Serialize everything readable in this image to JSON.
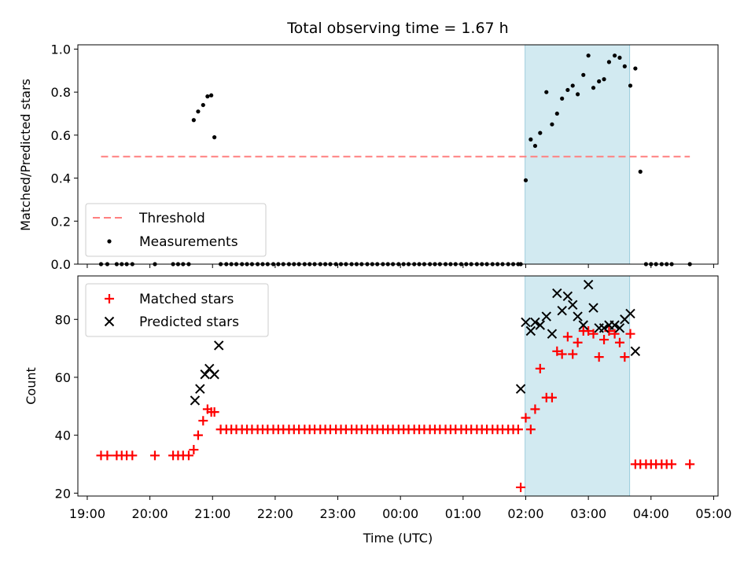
{
  "page": {
    "title": "Total observing time = 1.67 h"
  },
  "chart_data": [
    {
      "type": "scatter",
      "ylabel": "Matched/Predicted stars",
      "xlabel": "",
      "xlim_hours": [
        18.85,
        29.07
      ],
      "ylim": [
        0,
        1.02
      ],
      "xticks": [
        {
          "h": 19,
          "label": "19:00"
        },
        {
          "h": 20,
          "label": "20:00"
        },
        {
          "h": 21,
          "label": "21:00"
        },
        {
          "h": 22,
          "label": "22:00"
        },
        {
          "h": 23,
          "label": "23:00"
        },
        {
          "h": 24,
          "label": "00:00"
        },
        {
          "h": 25,
          "label": "01:00"
        },
        {
          "h": 26,
          "label": "02:00"
        },
        {
          "h": 27,
          "label": "03:00"
        },
        {
          "h": 28,
          "label": "04:00"
        },
        {
          "h": 29,
          "label": "05:00"
        }
      ],
      "yticks": [
        {
          "v": 0.0,
          "label": "0.0"
        },
        {
          "v": 0.2,
          "label": "0.2"
        },
        {
          "v": 0.4,
          "label": "0.4"
        },
        {
          "v": 0.6,
          "label": "0.6"
        },
        {
          "v": 0.8,
          "label": "0.8"
        },
        {
          "v": 1.0,
          "label": "1.0"
        }
      ],
      "shaded_span": [
        25.99,
        27.66
      ],
      "colors": {
        "threshold": "#ff7f7f",
        "measurements": "#000000",
        "span": "#add8e6"
      },
      "threshold": {
        "name": "Threshold",
        "value": 0.5,
        "x_range": [
          19.22,
          28.62
        ]
      },
      "measurements": {
        "name": "Measurements",
        "x": [
          19.22,
          19.32,
          19.47,
          19.55,
          19.63,
          19.72,
          20.08,
          20.37,
          20.45,
          20.53,
          20.62,
          20.7,
          20.77,
          20.85,
          20.92,
          20.98,
          21.03,
          21.13,
          21.22,
          21.3,
          21.38,
          21.47,
          21.55,
          21.63,
          21.72,
          21.8,
          21.88,
          21.97,
          22.05,
          22.13,
          22.22,
          22.3,
          22.38,
          22.47,
          22.55,
          22.63,
          22.72,
          22.8,
          22.88,
          22.97,
          23.05,
          23.13,
          23.22,
          23.3,
          23.38,
          23.47,
          23.55,
          23.63,
          23.72,
          23.8,
          23.88,
          23.97,
          24.05,
          24.13,
          24.22,
          24.3,
          24.38,
          24.47,
          24.55,
          24.63,
          24.72,
          24.8,
          24.88,
          24.97,
          25.05,
          25.13,
          25.22,
          25.3,
          25.38,
          25.47,
          25.55,
          25.63,
          25.72,
          25.8,
          25.88,
          25.92,
          26.0,
          26.08,
          26.15,
          26.23,
          26.33,
          26.42,
          26.5,
          26.58,
          26.67,
          26.75,
          26.83,
          26.92,
          27.0,
          27.08,
          27.17,
          27.25,
          27.33,
          27.42,
          27.5,
          27.58,
          27.67,
          27.75,
          27.83,
          27.92,
          28.0,
          28.08,
          28.17,
          28.25,
          28.33,
          28.62
        ],
        "y": [
          0,
          0,
          0,
          0,
          0,
          0,
          0,
          0,
          0,
          0,
          0,
          0.67,
          0.71,
          0.74,
          0.78,
          0.785,
          0.59,
          0,
          0,
          0,
          0,
          0,
          0,
          0,
          0,
          0,
          0,
          0,
          0,
          0,
          0,
          0,
          0,
          0,
          0,
          0,
          0,
          0,
          0,
          0,
          0,
          0,
          0,
          0,
          0,
          0,
          0,
          0,
          0,
          0,
          0,
          0,
          0,
          0,
          0,
          0,
          0,
          0,
          0,
          0,
          0,
          0,
          0,
          0,
          0,
          0,
          0,
          0,
          0,
          0,
          0,
          0,
          0,
          0,
          0,
          0,
          0.39,
          0.58,
          0.55,
          0.61,
          0.8,
          0.65,
          0.7,
          0.77,
          0.81,
          0.83,
          0.79,
          0.88,
          0.97,
          0.82,
          0.85,
          0.86,
          0.94,
          0.97,
          0.96,
          0.92,
          0.83,
          0.91,
          0.43,
          0,
          0,
          0,
          0,
          0,
          0,
          0
        ],
        "note_x_y_alignment": "values listed in time order"
      },
      "legend": {
        "placement": "lower-left",
        "entries": [
          "Threshold",
          "Measurements"
        ]
      }
    },
    {
      "type": "scatter",
      "ylabel": "Count",
      "xlabel": "Time (UTC)",
      "xlim_hours": [
        18.85,
        29.07
      ],
      "ylim": [
        19,
        95
      ],
      "yticks": [
        {
          "v": 20,
          "label": "20"
        },
        {
          "v": 40,
          "label": "40"
        },
        {
          "v": 60,
          "label": "60"
        },
        {
          "v": 80,
          "label": "80"
        }
      ],
      "shaded_span": [
        25.99,
        27.66
      ],
      "colors": {
        "matched": "#ff0000",
        "predicted": "#000000",
        "span": "#add8e6"
      },
      "matched": {
        "name": "Matched stars",
        "x": [
          19.22,
          19.32,
          19.47,
          19.55,
          19.63,
          19.72,
          20.08,
          20.37,
          20.45,
          20.53,
          20.62,
          20.7,
          20.77,
          20.85,
          20.92,
          20.98,
          21.03,
          21.13,
          21.22,
          21.3,
          21.38,
          21.47,
          21.55,
          21.63,
          21.72,
          21.8,
          21.88,
          21.97,
          22.05,
          22.13,
          22.22,
          22.3,
          22.38,
          22.47,
          22.55,
          22.63,
          22.72,
          22.8,
          22.88,
          22.97,
          23.05,
          23.13,
          23.22,
          23.3,
          23.38,
          23.47,
          23.55,
          23.63,
          23.72,
          23.8,
          23.88,
          23.97,
          24.05,
          24.13,
          24.22,
          24.3,
          24.38,
          24.47,
          24.55,
          24.63,
          24.72,
          24.8,
          24.88,
          24.97,
          25.05,
          25.13,
          25.22,
          25.3,
          25.38,
          25.47,
          25.55,
          25.63,
          25.72,
          25.8,
          25.88,
          25.92,
          26.0,
          26.08,
          26.15,
          26.23,
          26.33,
          26.42,
          26.5,
          26.58,
          26.67,
          26.75,
          26.83,
          26.92,
          27.0,
          27.08,
          27.17,
          27.25,
          27.33,
          27.42,
          27.5,
          27.58,
          27.67,
          27.75,
          27.83,
          27.92,
          28.0,
          28.08,
          28.17,
          28.25,
          28.33,
          28.62
        ],
        "y": [
          33,
          33,
          33,
          33,
          33,
          33,
          33,
          33,
          33,
          33,
          33,
          35,
          40,
          45,
          49,
          48,
          48,
          42,
          42,
          42,
          42,
          42,
          42,
          42,
          42,
          42,
          42,
          42,
          42,
          42,
          42,
          42,
          42,
          42,
          42,
          42,
          42,
          42,
          42,
          42,
          42,
          42,
          42,
          42,
          42,
          42,
          42,
          42,
          42,
          42,
          42,
          42,
          42,
          42,
          42,
          42,
          42,
          42,
          42,
          42,
          42,
          42,
          42,
          42,
          42,
          42,
          42,
          42,
          42,
          42,
          42,
          42,
          42,
          42,
          42,
          22,
          46,
          42,
          49,
          63,
          53,
          53,
          69,
          68,
          74,
          68,
          72,
          76,
          76,
          75,
          67,
          73,
          76,
          75,
          72,
          67,
          75,
          30,
          30,
          30,
          30,
          30,
          30,
          30,
          30,
          30
        ]
      },
      "predicted": {
        "name": "Predicted stars",
        "x": [
          20.72,
          20.8,
          20.88,
          20.95,
          21.03,
          21.1,
          25.92,
          26.0,
          26.08,
          26.15,
          26.23,
          26.33,
          26.42,
          26.5,
          26.58,
          26.67,
          26.75,
          26.83,
          26.92,
          27.0,
          27.08,
          27.17,
          27.25,
          27.33,
          27.42,
          27.5,
          27.58,
          27.67,
          27.75
        ],
        "y": [
          52,
          56,
          61,
          63,
          61,
          71,
          56,
          79,
          76,
          79,
          78,
          81,
          75,
          89,
          83,
          88,
          85,
          81,
          78,
          92,
          84,
          77,
          77,
          78,
          78,
          77,
          80,
          82,
          69
        ]
      },
      "legend": {
        "placement": "upper-left",
        "entries": [
          "Matched stars",
          "Predicted stars"
        ]
      }
    }
  ]
}
